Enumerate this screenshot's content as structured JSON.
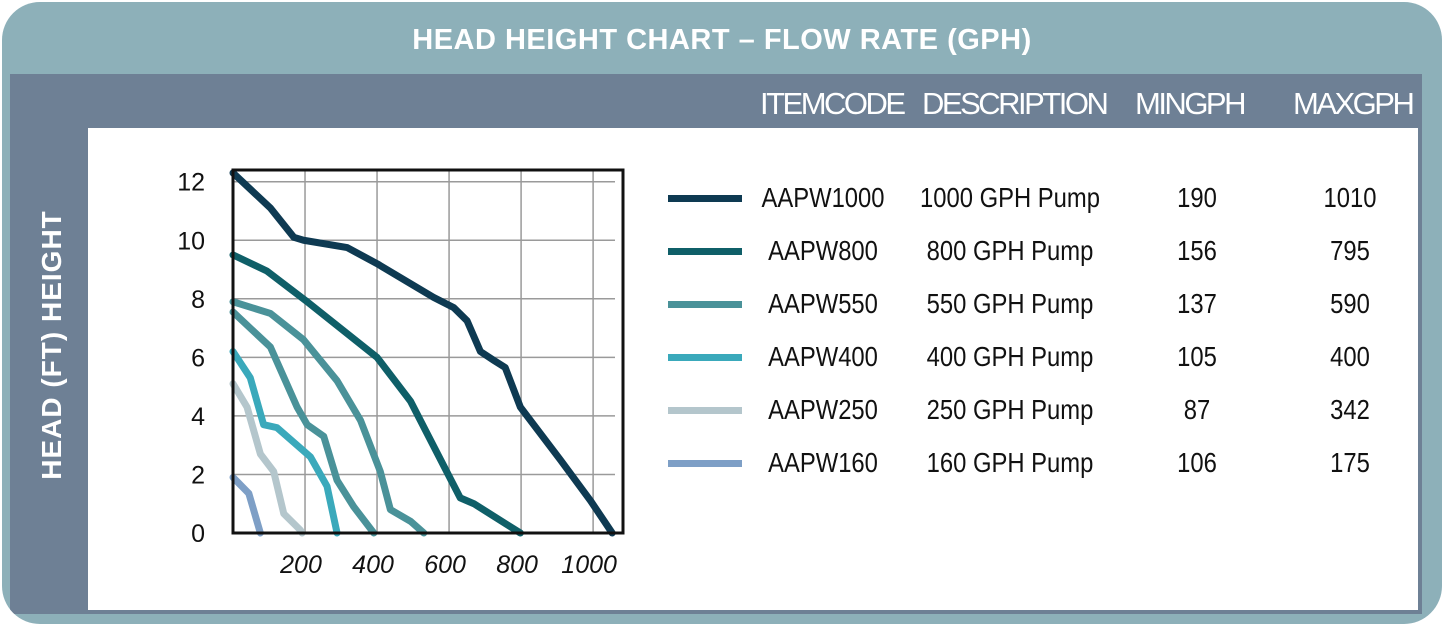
{
  "title": "HEAD HEIGHT CHART – FLOW RATE (GPH)",
  "table_headers": [
    "ITEMCODE",
    "DESCRIPTION",
    "MINGPH",
    "MAXGPH"
  ],
  "table_rows": [
    {
      "itemcode": "AAPW1000",
      "description": "1000 GPH Pump",
      "min": "190",
      "max": "1010",
      "color": "#0e3a52"
    },
    {
      "itemcode": "AAPW800",
      "description": "800 GPH Pump",
      "min": "156",
      "max": "795",
      "color": "#0f5f68"
    },
    {
      "itemcode": "AAPW550",
      "description": "550 GPH Pump",
      "min": "137",
      "max": "590",
      "color": "#4a9299"
    },
    {
      "itemcode": "AAPW400",
      "description": "400 GPH Pump",
      "min": "105",
      "max": "400",
      "color": "#3aa9bb"
    },
    {
      "itemcode": "AAPW250",
      "description": "250 GPH Pump",
      "min": "87",
      "max": "342",
      "color": "#b4c6cc"
    },
    {
      "itemcode": "AAPW160",
      "description": "160 GPH Pump",
      "min": "106",
      "max": "175",
      "color": "#7e9fc6"
    }
  ],
  "chart_data": {
    "type": "line",
    "title": "HEAD HEIGHT CHART – FLOW RATE (GPH)",
    "xlabel": "",
    "ylabel": "HEAD (FT) HEIGHT",
    "xlim": [
      0,
      1083
    ],
    "ylim": [
      0,
      12.4
    ],
    "xticks": [
      "200",
      "400",
      "600",
      "800",
      "1000"
    ],
    "xtick_values": [
      200,
      400,
      600,
      800,
      1000
    ],
    "yticks": [
      "0",
      "2",
      "4",
      "6",
      "8",
      "10",
      "12"
    ],
    "ytick_values": [
      0,
      2,
      4,
      6,
      8,
      10,
      12
    ],
    "grid": true,
    "legend": "right",
    "series": [
      {
        "name": "AAPW1000",
        "color": "#0e3a52",
        "points": [
          [
            0,
            12.3
          ],
          [
            104,
            11.1
          ],
          [
            169,
            10.1
          ],
          [
            196,
            10.0
          ],
          [
            317,
            9.75
          ],
          [
            400,
            9.2
          ],
          [
            557,
            8.05
          ],
          [
            613,
            7.7
          ],
          [
            650,
            7.25
          ],
          [
            687,
            6.2
          ],
          [
            724,
            5.9
          ],
          [
            756,
            5.65
          ],
          [
            798,
            4.3
          ],
          [
            909,
            2.5
          ],
          [
            993,
            1.1
          ],
          [
            1053,
            0
          ]
        ]
      },
      {
        "name": "AAPW800",
        "color": "#0f5f68",
        "points": [
          [
            0,
            9.5
          ],
          [
            94,
            8.95
          ],
          [
            206,
            7.9
          ],
          [
            400,
            6.0
          ],
          [
            493,
            4.5
          ],
          [
            539,
            3.4
          ],
          [
            631,
            1.2
          ],
          [
            669,
            1.0
          ],
          [
            798,
            0
          ]
        ]
      },
      {
        "name": "AAPW550",
        "color": "#4a9299",
        "points": [
          [
            0,
            7.9
          ],
          [
            104,
            7.5
          ],
          [
            196,
            6.6
          ],
          [
            289,
            5.2
          ],
          [
            354,
            3.85
          ],
          [
            409,
            2.1
          ],
          [
            437,
            0.8
          ],
          [
            493,
            0.4
          ],
          [
            530,
            0
          ]
        ]
      },
      {
        "color": "#4a9299",
        "points": [
          [
            0,
            7.55
          ],
          [
            104,
            6.35
          ],
          [
            178,
            4.3
          ],
          [
            206,
            3.7
          ],
          [
            252,
            3.3
          ],
          [
            289,
            1.8
          ],
          [
            335,
            0.9
          ],
          [
            391,
            0
          ]
        ]
      },
      {
        "name": "AAPW400",
        "color": "#3aa9bb",
        "points": [
          [
            0,
            6.2
          ],
          [
            48,
            5.3
          ],
          [
            85,
            3.7
          ],
          [
            122,
            3.6
          ],
          [
            215,
            2.6
          ],
          [
            261,
            1.6
          ],
          [
            289,
            0
          ]
        ]
      },
      {
        "name": "AAPW250",
        "color": "#b4c6cc",
        "points": [
          [
            0,
            5.1
          ],
          [
            39,
            4.3
          ],
          [
            76,
            2.7
          ],
          [
            113,
            2.1
          ],
          [
            141,
            0.66
          ],
          [
            187,
            0.1
          ],
          [
            192,
            0
          ]
        ]
      },
      {
        "name": "AAPW160",
        "color": "#7e9fc6",
        "points": [
          [
            0,
            1.9
          ],
          [
            44,
            1.35
          ],
          [
            76,
            0
          ]
        ]
      }
    ]
  }
}
